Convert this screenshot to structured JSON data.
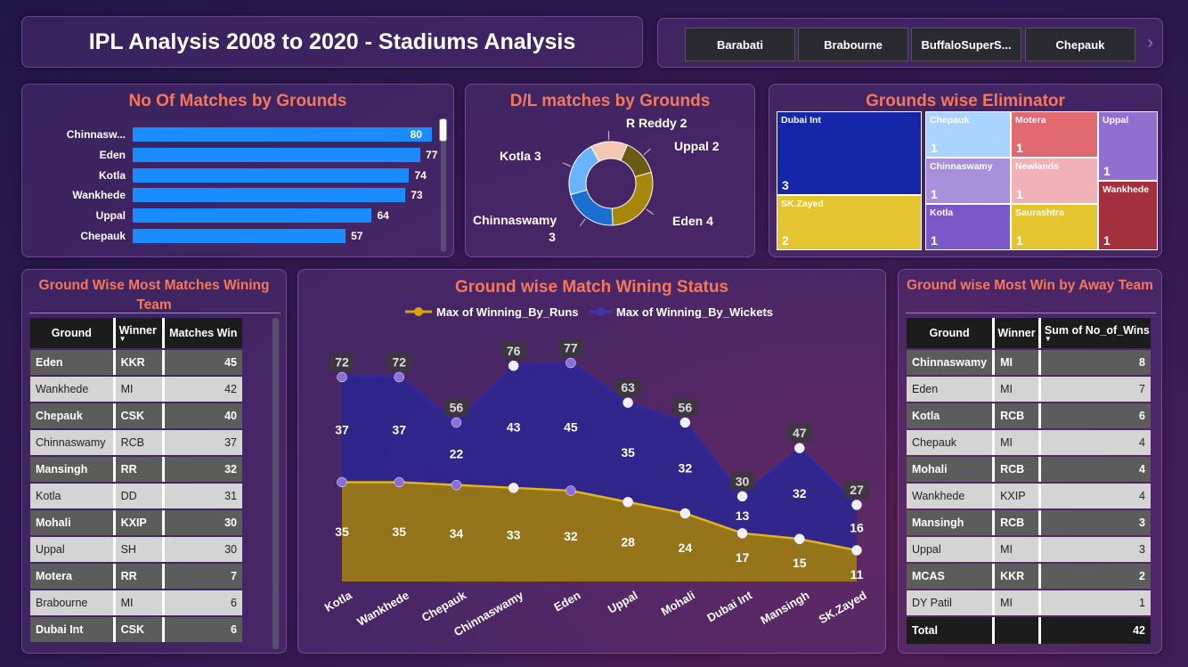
{
  "header": {
    "title": "IPL Analysis 2008 to 2020 - Stadiums Analysis"
  },
  "slicer": {
    "items": [
      "Barabati",
      "Brabourne",
      "BuffaloSuperS...",
      "Chepauk"
    ],
    "next_icon": "chevron-right-icon"
  },
  "bar_panel": {
    "title": "No Of Matches by Grounds"
  },
  "donut_panel": {
    "title": "D/L matches by Grounds"
  },
  "treemap_panel": {
    "title": "Grounds wise Eliminator"
  },
  "line_panel": {
    "title": "Ground wise Match Wining Status"
  },
  "left_table": {
    "title": "Ground Wise Most Matches Wining Team",
    "headers": [
      "Ground",
      "Winner",
      "Matches Win"
    ],
    "rows": [
      [
        "Eden",
        "KKR",
        "45"
      ],
      [
        "Wankhede",
        "MI",
        "42"
      ],
      [
        "Chepauk",
        "CSK",
        "40"
      ],
      [
        "Chinnaswamy",
        "RCB",
        "37"
      ],
      [
        "Mansingh",
        "RR",
        "32"
      ],
      [
        "Kotla",
        "DD",
        "31"
      ],
      [
        "Mohali",
        "KXIP",
        "30"
      ],
      [
        "Uppal",
        "SH",
        "30"
      ],
      [
        "Motera",
        "RR",
        "7"
      ],
      [
        "Brabourne",
        "MI",
        "6"
      ],
      [
        "Dubai Int",
        "CSK",
        "6"
      ]
    ]
  },
  "right_table": {
    "title": "Ground wise Most Win by Away Team",
    "headers": [
      "Ground",
      "Winner",
      "Sum of No_of_Wins"
    ],
    "rows": [
      [
        "Chinnaswamy",
        "MI",
        "8"
      ],
      [
        "Eden",
        "MI",
        "7"
      ],
      [
        "Kotla",
        "RCB",
        "6"
      ],
      [
        "Chepauk",
        "MI",
        "4"
      ],
      [
        "Mohali",
        "RCB",
        "4"
      ],
      [
        "Wankhede",
        "KXIP",
        "4"
      ],
      [
        "Mansingh",
        "RCB",
        "3"
      ],
      [
        "Uppal",
        "MI",
        "3"
      ],
      [
        "MCAS",
        "KKR",
        "2"
      ],
      [
        "DY Patil",
        "MI",
        "1"
      ]
    ],
    "total": [
      "Total",
      "",
      "42"
    ]
  },
  "colors": {
    "bar": "#1a8cff",
    "title": "#f5785a",
    "runs": "#a8860a",
    "wickets": "#2d2a8c"
  },
  "chart_data": [
    {
      "type": "bar",
      "title": "No Of Matches by Grounds",
      "categories": [
        "Chinnasw...",
        "Eden",
        "Kotla",
        "Wankhede",
        "Uppal",
        "Chepauk"
      ],
      "values": [
        80,
        77,
        74,
        73,
        64,
        57
      ],
      "xlim": [
        0,
        82
      ]
    },
    {
      "type": "pie",
      "title": "D/L matches by Grounds",
      "labels": [
        "R Reddy",
        "Uppal",
        "Eden",
        "Chinnaswamy",
        "Kotla"
      ],
      "values": [
        2,
        2,
        4,
        3,
        3
      ],
      "colors": [
        "#f4c6b4",
        "#6b5a12",
        "#a8860a",
        "#1a6fd0",
        "#6ab4ff"
      ]
    },
    {
      "type": "treemap",
      "title": "Grounds wise Eliminator",
      "labels": [
        "Dubai Int",
        "SK.Zayed",
        "Chepauk",
        "Chinnaswamy",
        "Kotla",
        "Motera",
        "Newlands",
        "Saurashtra",
        "Uppal",
        "Wankhede"
      ],
      "values": [
        3,
        2,
        1,
        1,
        1,
        1,
        1,
        1,
        1,
        1
      ],
      "colors": [
        "#1527a8",
        "#e4c531",
        "#a8d4ff",
        "#a88fdb",
        "#7b58c8",
        "#e06a70",
        "#f0b2b8",
        "#e4c531",
        "#8f6fd0",
        "#a3303c"
      ]
    },
    {
      "type": "area",
      "title": "Ground wise Match Wining Status",
      "categories": [
        "Kotla",
        "Wankhede",
        "Chepauk",
        "Chinnaswamy",
        "Eden",
        "Uppal",
        "Mohali",
        "Dubai Int",
        "Mansingh",
        "SK.Zayed"
      ],
      "series": [
        {
          "name": "Max of Winning_By_Runs",
          "values": [
            35,
            35,
            34,
            33,
            32,
            28,
            24,
            17,
            15,
            11
          ]
        },
        {
          "name": "Max of Winning_By_Wickets",
          "values": [
            37,
            37,
            22,
            43,
            45,
            35,
            32,
            13,
            32,
            16
          ]
        }
      ],
      "totals": [
        72,
        72,
        56,
        76,
        77,
        63,
        56,
        30,
        47,
        27
      ],
      "stacked": true,
      "legend": "top"
    }
  ]
}
